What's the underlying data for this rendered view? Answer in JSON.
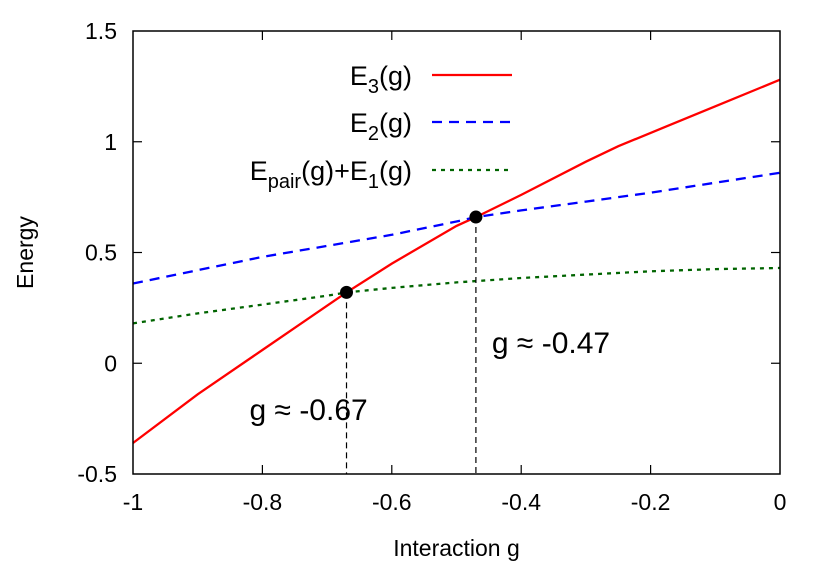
{
  "chart_data": {
    "type": "line",
    "xlabel": "Interaction g",
    "ylabel": "Energy",
    "xlim": [
      -1,
      0
    ],
    "ylim": [
      -0.5,
      1.5
    ],
    "x_ticks": [
      -1,
      -0.8,
      -0.6,
      -0.4,
      -0.2,
      0
    ],
    "x_tick_labels": [
      "-1",
      "-0.8",
      "-0.6",
      "-0.4",
      "-0.2",
      "0"
    ],
    "y_ticks": [
      -0.5,
      0,
      0.5,
      1,
      1.5
    ],
    "y_tick_labels": [
      "-0.5",
      "0",
      "0.5",
      "1",
      "1.5"
    ],
    "grid": false,
    "legend_position": "top-right",
    "series": [
      {
        "name": "E3(g)",
        "legend": {
          "base": "E",
          "sub": "3",
          "rest": "(g)"
        },
        "color": "#ff0000",
        "dash": "solid",
        "x": [
          -1,
          -0.9,
          -0.8,
          -0.75,
          -0.7,
          -0.67,
          -0.6,
          -0.5,
          -0.47,
          -0.4,
          -0.3,
          -0.25,
          -0.2,
          -0.1,
          0
        ],
        "y": [
          -0.36,
          -0.14,
          0.06,
          0.16,
          0.26,
          0.32,
          0.45,
          0.62,
          0.66,
          0.76,
          0.91,
          0.98,
          1.04,
          1.16,
          1.28
        ]
      },
      {
        "name": "E2(g)",
        "legend": {
          "base": "E",
          "sub": "2",
          "rest": "(g)"
        },
        "color": "#0000ff",
        "dash": "dashed",
        "x": [
          -1,
          -0.9,
          -0.8,
          -0.7,
          -0.6,
          -0.5,
          -0.47,
          -0.4,
          -0.3,
          -0.2,
          -0.1,
          0
        ],
        "y": [
          0.36,
          0.42,
          0.48,
          0.53,
          0.58,
          0.64,
          0.66,
          0.69,
          0.73,
          0.77,
          0.815,
          0.86
        ]
      },
      {
        "name": "Epair(g)+E1(g)",
        "legend": {
          "base": "E",
          "sub": "pair",
          "rest": "(g)+E",
          "sub2": "1",
          "rest2": "(g)"
        },
        "color": "#006400",
        "dash": "dotted",
        "x": [
          -1,
          -0.9,
          -0.8,
          -0.7,
          -0.67,
          -0.6,
          -0.5,
          -0.4,
          -0.3,
          -0.2,
          -0.1,
          0
        ],
        "y": [
          0.18,
          0.225,
          0.265,
          0.305,
          0.32,
          0.34,
          0.365,
          0.385,
          0.4,
          0.415,
          0.425,
          0.43
        ]
      }
    ],
    "markers": [
      {
        "x": -0.67,
        "y": 0.32,
        "label": "g ≈ -0.67"
      },
      {
        "x": -0.47,
        "y": 0.66,
        "label": "g ≈ -0.47"
      }
    ]
  }
}
